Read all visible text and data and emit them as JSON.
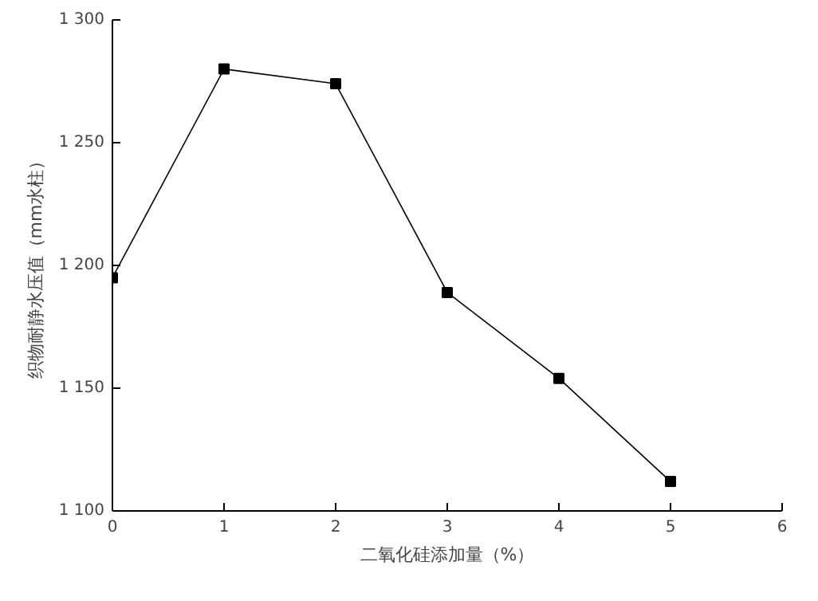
{
  "chart_data": {
    "type": "line",
    "xlabel": "二氧化硅添加量（%）",
    "ylabel": "织物耐静水压值（mm水柱）",
    "x": [
      0,
      1,
      2,
      3,
      4,
      5
    ],
    "series": [
      {
        "color": "#000000",
        "values": [
          1195,
          1280,
          1274,
          1189,
          1154,
          1112
        ]
      }
    ],
    "xlim": [
      0,
      6
    ],
    "xticks": [
      0,
      1,
      2,
      3,
      4,
      5,
      6
    ],
    "ylim": [
      1100,
      1300
    ],
    "yticks": [
      {
        "value": 1100,
        "label": "1 100"
      },
      {
        "value": 1150,
        "label": "1 150"
      },
      {
        "value": 1200,
        "label": "1 200"
      },
      {
        "value": 1250,
        "label": "1 250"
      },
      {
        "value": 1300,
        "label": "1 300"
      }
    ],
    "marker": "square",
    "grid": false
  }
}
